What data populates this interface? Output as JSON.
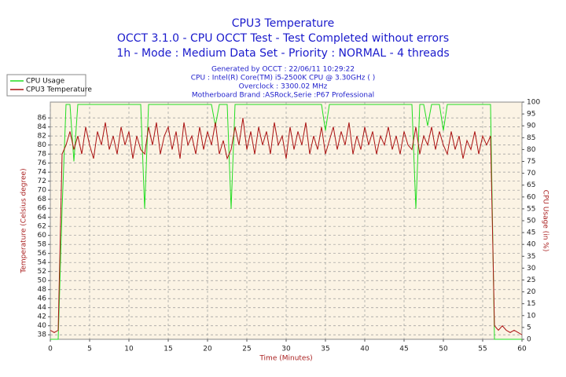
{
  "chart_data": {
    "type": "line",
    "title": "CPU3 Temperature",
    "subtitle": "OCCT 3.1.0 - CPU OCCT Test - Test Completed without errors",
    "subtitle2": "1h - Mode : Medium Data Set - Priority : NORMAL - 4 threads",
    "info": [
      "Generated by OCCT : 22/06/11 10:29:22",
      "CPU : Intel(R) Core(TM) i5-2500K CPU @ 3.30GHz (  )",
      "Overclock : 3300.02 MHz",
      "Motherboard Brand :ASRock,Serie :P67 Professional"
    ],
    "x_label": "Time (Minutes)",
    "y_label": "Temperature (Celsius degree)",
    "y2_label": "CPU Usage (in %)",
    "x": [
      0,
      0.5,
      1,
      1.5,
      2,
      2.5,
      3,
      3.5,
      4,
      4.5,
      5,
      5.5,
      6,
      6.5,
      7,
      7.5,
      8,
      8.5,
      9,
      9.5,
      10,
      10.5,
      11,
      11.5,
      12,
      12.5,
      13,
      13.5,
      14,
      14.5,
      15,
      15.5,
      16,
      16.5,
      17,
      17.5,
      18,
      18.5,
      19,
      19.5,
      20,
      20.5,
      21,
      21.5,
      22,
      22.5,
      23,
      23.5,
      24,
      24.5,
      25,
      25.5,
      26,
      26.5,
      27,
      27.5,
      28,
      28.5,
      29,
      29.5,
      30,
      30.5,
      31,
      31.5,
      32,
      32.5,
      33,
      33.5,
      34,
      34.5,
      35,
      35.5,
      36,
      36.5,
      37,
      37.5,
      38,
      38.5,
      39,
      39.5,
      40,
      40.5,
      41,
      41.5,
      42,
      42.5,
      43,
      43.5,
      44,
      44.5,
      45,
      45.5,
      46,
      46.5,
      47,
      47.5,
      48,
      48.5,
      49,
      49.5,
      50,
      50.5,
      51,
      51.5,
      52,
      52.5,
      53,
      53.5,
      54,
      54.5,
      55,
      55.5,
      56,
      56.5,
      57,
      57.5,
      58,
      58.5,
      59,
      59.5,
      60
    ],
    "series": [
      {
        "name": "CPU Usage",
        "color": "#22dd22",
        "axis": "y2",
        "values": [
          0,
          0,
          0,
          55,
          99,
          99,
          75,
          99,
          99,
          99,
          99,
          99,
          99,
          99,
          99,
          99,
          99,
          99,
          99,
          99,
          99,
          99,
          99,
          99,
          55,
          99,
          99,
          99,
          99,
          99,
          99,
          99,
          99,
          99,
          99,
          99,
          99,
          99,
          99,
          99,
          99,
          99,
          90,
          99,
          99,
          99,
          55,
          99,
          99,
          99,
          99,
          99,
          99,
          99,
          99,
          99,
          99,
          99,
          99,
          99,
          99,
          99,
          99,
          99,
          99,
          99,
          99,
          99,
          99,
          99,
          88,
          99,
          99,
          99,
          99,
          99,
          99,
          99,
          99,
          99,
          99,
          99,
          99,
          99,
          99,
          99,
          99,
          99,
          99,
          99,
          99,
          99,
          99,
          55,
          99,
          99,
          90,
          99,
          99,
          99,
          88,
          99,
          99,
          99,
          99,
          99,
          99,
          99,
          99,
          99,
          99,
          99,
          99,
          0,
          0,
          0,
          0,
          0,
          0,
          0,
          0
        ]
      },
      {
        "name": "CPU3 Temperature",
        "color": "#aa1111",
        "values": [
          39,
          38.5,
          39,
          78,
          80,
          83,
          79,
          82,
          78,
          84,
          80,
          77,
          83,
          80,
          85,
          79,
          82,
          78,
          84,
          80,
          83,
          77,
          82,
          79,
          78,
          84,
          80,
          85,
          78,
          82,
          84,
          79,
          83,
          77,
          85,
          80,
          82,
          78,
          84,
          79,
          83,
          80,
          85,
          78,
          81,
          77,
          79,
          84,
          80,
          86,
          79,
          83,
          78,
          84,
          80,
          83,
          78,
          85,
          80,
          82,
          77,
          84,
          79,
          83,
          80,
          85,
          78,
          82,
          79,
          84,
          78,
          81,
          84,
          79,
          83,
          80,
          85,
          78,
          82,
          79,
          84,
          80,
          83,
          78,
          82,
          80,
          84,
          79,
          82,
          78,
          83,
          80,
          79,
          84,
          78,
          82,
          80,
          84,
          79,
          83,
          80,
          78,
          83,
          79,
          82,
          77,
          81,
          79,
          83,
          78,
          82,
          80,
          82,
          40,
          39,
          40,
          39,
          38.5,
          39,
          38.5,
          38
        ]
      }
    ],
    "xlim": [
      0,
      60
    ],
    "xticks": [
      0,
      5,
      10,
      15,
      20,
      25,
      30,
      35,
      40,
      45,
      50,
      55,
      60
    ],
    "ylim": [
      37,
      89.5
    ],
    "yticks": [
      38,
      40,
      42,
      44,
      46,
      48,
      50,
      52,
      54,
      56,
      58,
      60,
      62,
      64,
      66,
      68,
      70,
      72,
      74,
      76,
      78,
      80,
      82,
      84,
      86
    ],
    "y2lim": [
      0,
      100
    ],
    "y2ticks": [
      0,
      5,
      10,
      15,
      20,
      25,
      30,
      35,
      40,
      45,
      50,
      55,
      60,
      65,
      70,
      75,
      80,
      85,
      90,
      95,
      100
    ],
    "grid": true,
    "legend": "top-left"
  }
}
